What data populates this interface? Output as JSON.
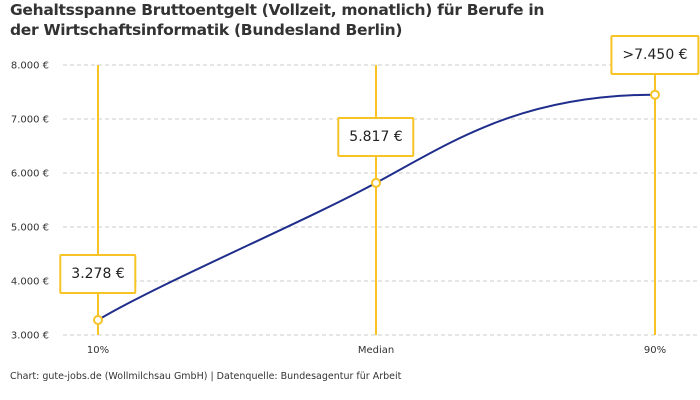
{
  "chart_data": {
    "type": "line",
    "title": "Gehaltsspanne Bruttoentgelt (Vollzeit, monatlich) für Berufe in der Wirtschaftsinformatik (Bundesland Berlin)",
    "categories": [
      "10%",
      "Median",
      "90%"
    ],
    "values": [
      3278,
      5817,
      7450
    ],
    "data_labels": [
      "3.278 €",
      "5.817 €",
      ">7.450 €"
    ],
    "ylim": [
      3000,
      8000
    ],
    "yticks": [
      3000,
      4000,
      5000,
      6000,
      7000,
      8000
    ],
    "ytick_labels": [
      "3.000 €",
      "4.000 €",
      "5.000 €",
      "6.000 €",
      "7.000 €",
      "8.000 €"
    ],
    "grid": true,
    "colors": {
      "line": "#1f2e8c",
      "marker": "#f7c325",
      "grid": "#cccccc"
    }
  },
  "footer": "Chart: gute-jobs.de (Wollmilchsau GmbH) | Datenquelle: Bundesagentur für Arbeit"
}
